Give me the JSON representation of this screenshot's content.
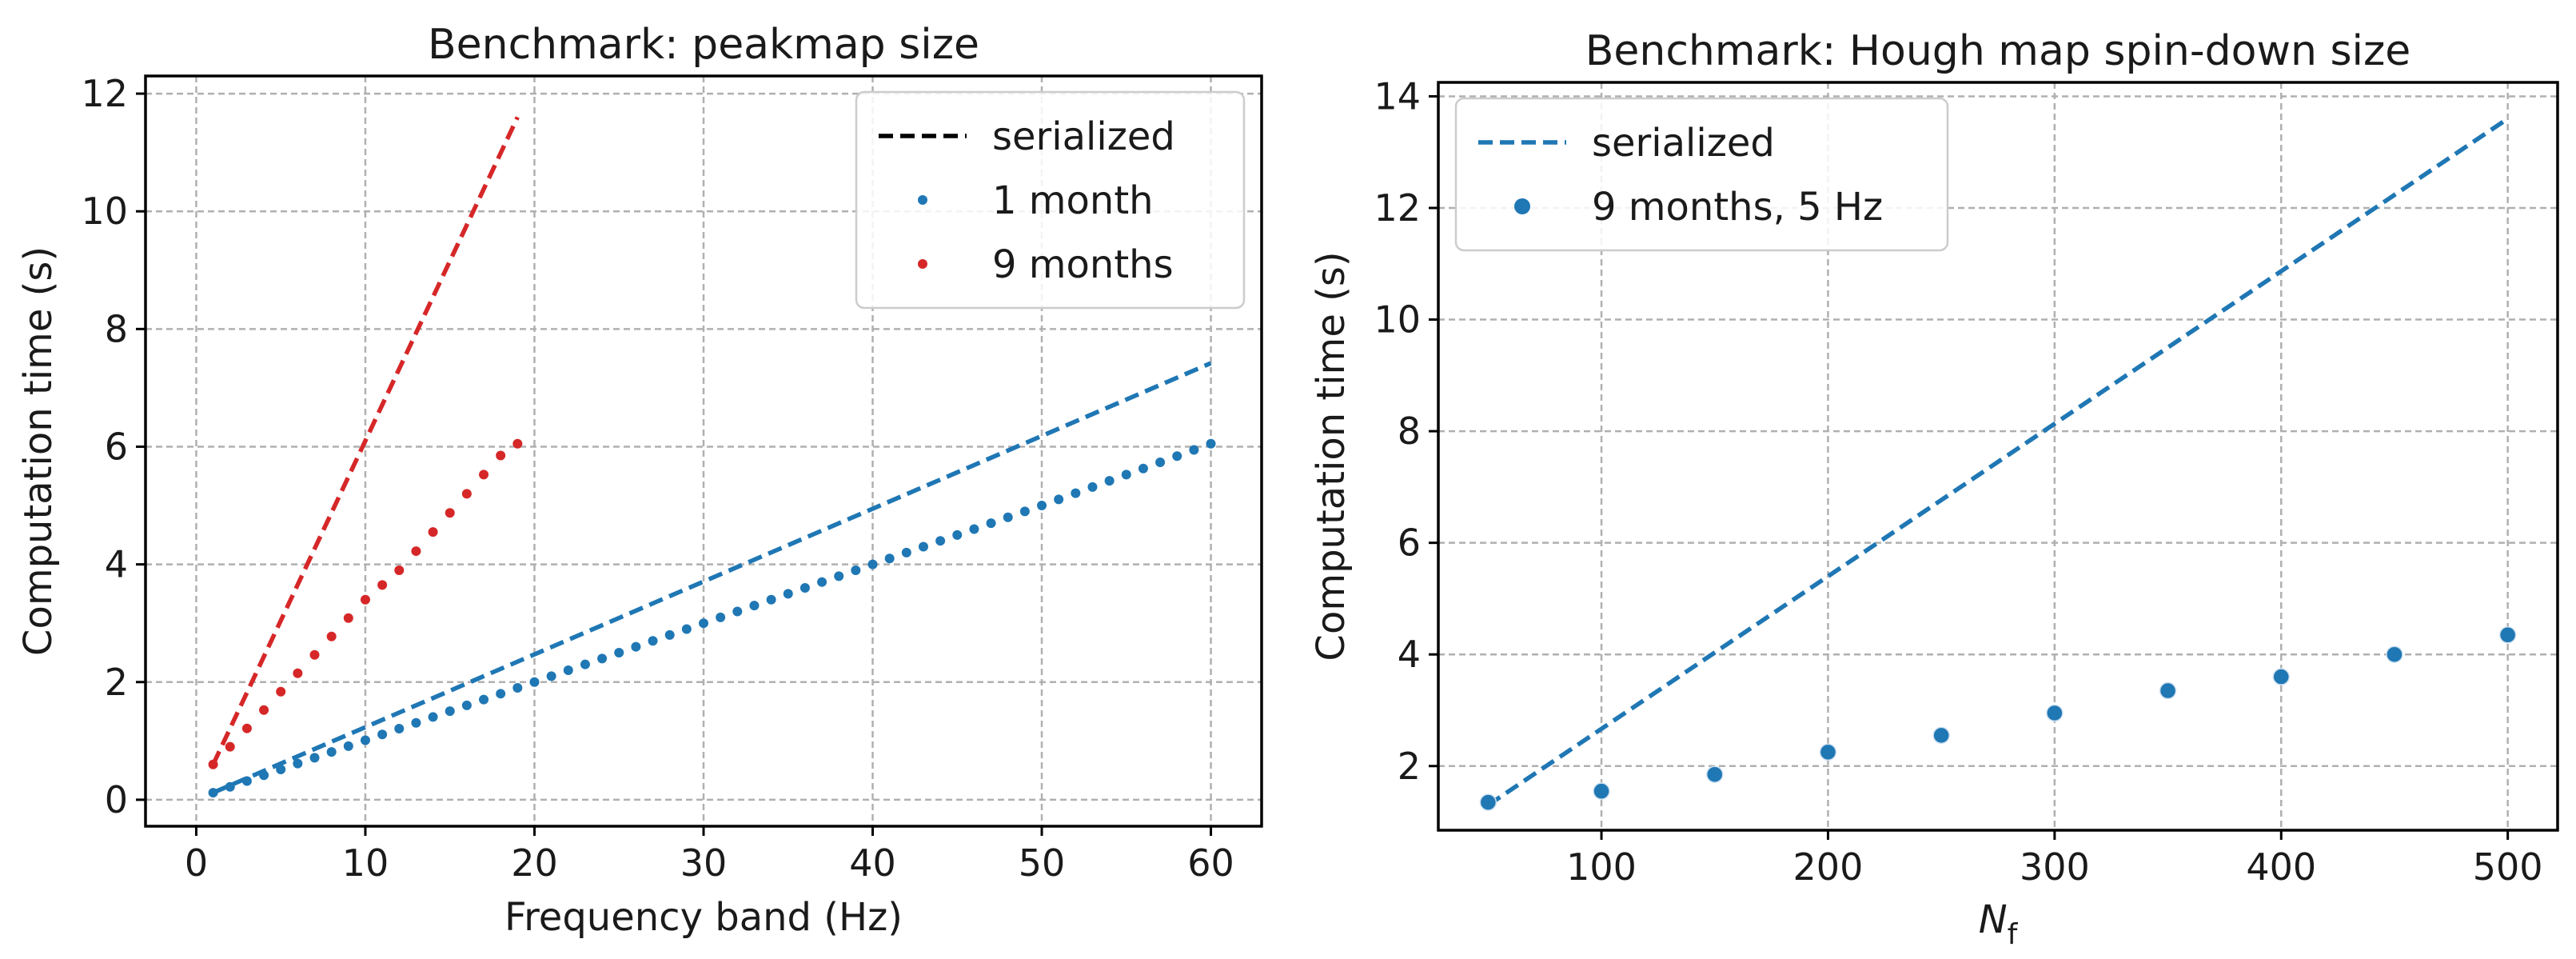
{
  "chart_data": [
    {
      "type": "scatter",
      "title": "Benchmark: peakmap size",
      "xlabel": "Frequency band (Hz)",
      "ylabel": "Computation time (s)",
      "xlim": [
        -3,
        63
      ],
      "ylim": [
        -0.45,
        12.3
      ],
      "xticks": [
        0,
        10,
        20,
        30,
        40,
        50,
        60
      ],
      "yticks": [
        0,
        2,
        4,
        6,
        8,
        10,
        12
      ],
      "grid": true,
      "legend": {
        "placement": "top-right",
        "entries": [
          {
            "label": "serialized",
            "marker": "dashed-line",
            "color": "#000000"
          },
          {
            "label": "1 month",
            "marker": "point",
            "color": "#1f77b4"
          },
          {
            "label": "9 months",
            "marker": "point",
            "color": "#d62728"
          }
        ]
      },
      "series": [
        {
          "kind": "line",
          "style": "dashed",
          "color": "#1f77b4",
          "x": [
            1,
            60
          ],
          "y": [
            0.12,
            7.42
          ]
        },
        {
          "kind": "line",
          "style": "dashed",
          "color": "#d62728",
          "x": [
            1,
            19
          ],
          "y": [
            0.6,
            11.6
          ]
        },
        {
          "name": "1 month",
          "kind": "scatter",
          "color": "#1f77b4",
          "size": 6,
          "x_start": 1,
          "x_end": 60,
          "x_step": 1,
          "y_segments": [
            [
              1,
              0.12
            ],
            [
              20,
              2.0
            ],
            [
              30,
              3.0
            ],
            [
              40,
              4.0
            ],
            [
              50,
              5.0
            ],
            [
              60,
              6.05
            ]
          ]
        },
        {
          "name": "9 months",
          "kind": "scatter",
          "color": "#d62728",
          "size": 6,
          "x_start": 1,
          "x_end": 19,
          "x_step": 1,
          "y_segments": [
            [
              1,
              0.6
            ],
            [
              2,
              0.9
            ],
            [
              10,
              3.4
            ],
            [
              12,
              3.9
            ],
            [
              18,
              5.85
            ],
            [
              19,
              6.05
            ]
          ]
        }
      ]
    },
    {
      "type": "scatter",
      "title": "Benchmark: Hough map spin-down size",
      "xlabel": "N_f",
      "xlabel_main": "N",
      "xlabel_sub": "f",
      "ylabel": "Computation time (s)",
      "xlim": [
        28,
        522
      ],
      "ylim": [
        0.85,
        14.25
      ],
      "xticks": [
        100,
        200,
        300,
        400,
        500
      ],
      "yticks": [
        2,
        4,
        6,
        8,
        10,
        12,
        14
      ],
      "grid": true,
      "legend": {
        "placement": "top-left",
        "entries": [
          {
            "label": "serialized",
            "marker": "dashed-line",
            "color": "#1f77b4"
          },
          {
            "label": "9 months, 5 Hz",
            "marker": "dot",
            "color": "#1f77b4"
          }
        ]
      },
      "series": [
        {
          "kind": "line",
          "style": "dashed",
          "color": "#1f77b4",
          "x": [
            50,
            500
          ],
          "y": [
            1.3,
            13.6
          ]
        },
        {
          "name": "9 months, 5 Hz",
          "kind": "scatter",
          "color": "#1f77b4",
          "size": 10,
          "x": [
            50,
            100,
            150,
            200,
            250,
            300,
            350,
            400,
            450,
            500
          ],
          "y": [
            1.35,
            1.55,
            1.85,
            2.25,
            2.55,
            2.95,
            3.35,
            3.6,
            4.0,
            4.35
          ]
        }
      ]
    }
  ]
}
